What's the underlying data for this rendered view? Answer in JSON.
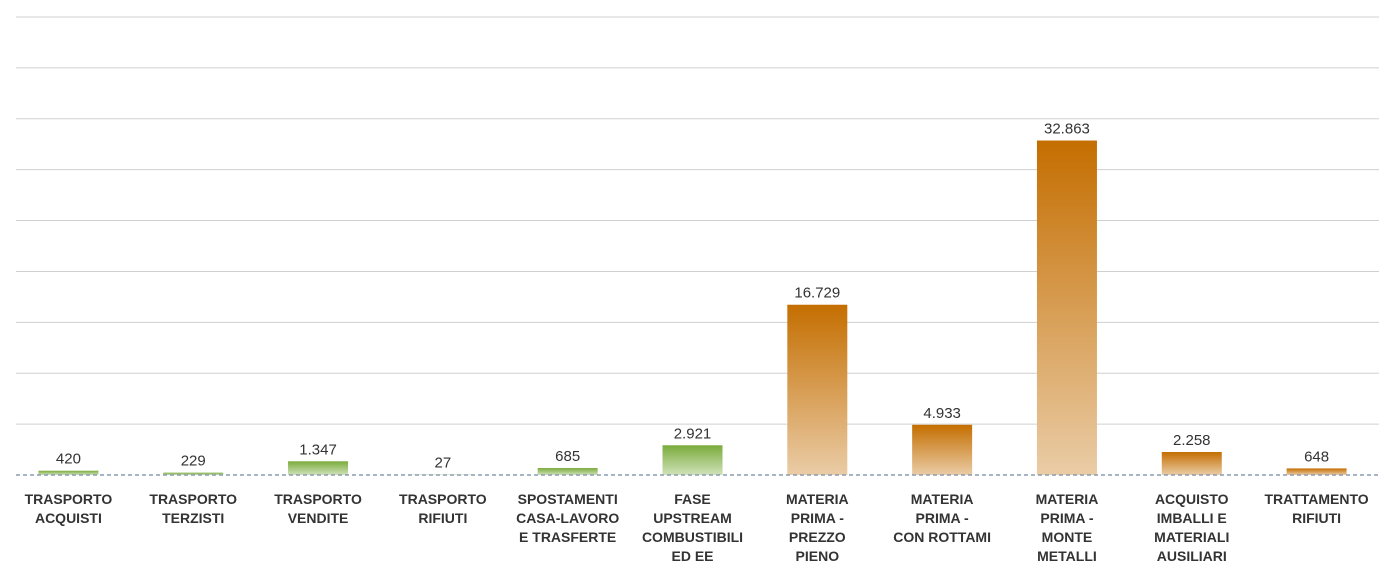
{
  "chart_data": {
    "type": "bar",
    "categories": [
      "TRASPORTO\nACQUISTI",
      "TRASPORTO\nTERZISTI",
      "TRASPORTO\nVENDITE",
      "TRASPORTO\nRIFIUTI",
      "SPOSTAMENTI\nCASA-LAVORO\nE TRASFERTE",
      "FASE\nUPSTREAM\nCOMBUSTIBILI\nED EE",
      "MATERIA\nPRIMA -\nPREZZO\nPIENO",
      "MATERIA\nPRIMA -\nCON ROTTAMI",
      "MATERIA\nPRIMA -\nMONTE\nMETALLI",
      "ACQUISTO\nIMBALLI E\nMATERIALI\nAUSILIARI",
      "TRATTAMENTO\nRIFIUTI"
    ],
    "values": [
      420,
      229,
      1347,
      27,
      685,
      2921,
      16729,
      4933,
      32863,
      2258,
      648
    ],
    "value_labels": [
      "420",
      "229",
      "1.347",
      "27",
      "685",
      "2.921",
      "16.729",
      "4.933",
      "32.863",
      "2.258",
      "648"
    ],
    "colors": [
      "#7aab3a",
      "#7aab3a",
      "#7aab3a",
      "#7aab3a",
      "#7aab3a",
      "#7aab3a",
      "#c46e00",
      "#c46e00",
      "#c46e00",
      "#c46e00",
      "#c46e00"
    ],
    "ylim": [
      0,
      45000
    ],
    "yticks": [
      0,
      5000,
      10000,
      15000,
      20000,
      25000,
      30000,
      35000,
      40000,
      45000
    ],
    "grid": true
  }
}
